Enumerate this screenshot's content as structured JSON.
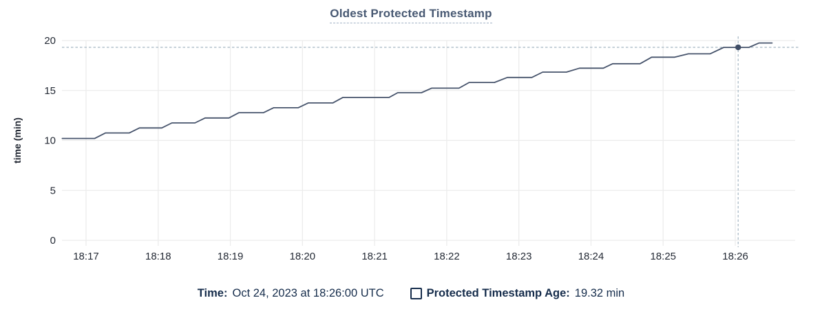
{
  "chart": {
    "title": "Oldest Protected Timestamp"
  },
  "legend": {
    "time_label": "Time:",
    "time_value": "Oct 24, 2023 at 18:26:00 UTC",
    "series_label": "Protected Timestamp Age:",
    "series_value": "19.32 min"
  },
  "colors": {
    "text": "#242a35",
    "navy": "#152c4b",
    "title": "#475872",
    "grid": "#ececec",
    "line": "#46536b",
    "dot": "#3f4d66",
    "crosshair": "#a3b5c2"
  },
  "chart_data": {
    "type": "line",
    "title": "Oldest Protected Timestamp",
    "xlabel": "",
    "ylabel": "time (min)",
    "ylim": [
      0,
      20
    ],
    "yticks": [
      0,
      5,
      10,
      15,
      20
    ],
    "grid": true,
    "legend_position": "bottom",
    "x_domain_minutes_after_1800": [
      16.666,
      26.83
    ],
    "xticks": [
      {
        "t": 17,
        "label": "18:17"
      },
      {
        "t": 18,
        "label": "18:18"
      },
      {
        "t": 19,
        "label": "18:19"
      },
      {
        "t": 20,
        "label": "18:20"
      },
      {
        "t": 21,
        "label": "18:21"
      },
      {
        "t": 22,
        "label": "18:22"
      },
      {
        "t": 23,
        "label": "18:23"
      },
      {
        "t": 24,
        "label": "18:24"
      },
      {
        "t": 25,
        "label": "18:25"
      },
      {
        "t": 26,
        "label": "18:26"
      }
    ],
    "series": [
      {
        "name": "Protected Timestamp Age",
        "unit": "min",
        "points": [
          [
            16.67,
            10.2
          ],
          [
            17.12,
            10.2
          ],
          [
            17.27,
            10.75
          ],
          [
            17.6,
            10.75
          ],
          [
            17.74,
            11.25
          ],
          [
            18.05,
            11.25
          ],
          [
            18.19,
            11.75
          ],
          [
            18.51,
            11.75
          ],
          [
            18.65,
            12.25
          ],
          [
            18.98,
            12.25
          ],
          [
            19.12,
            12.78
          ],
          [
            19.46,
            12.78
          ],
          [
            19.6,
            13.27
          ],
          [
            19.94,
            13.27
          ],
          [
            20.08,
            13.75
          ],
          [
            20.42,
            13.75
          ],
          [
            20.56,
            14.3
          ],
          [
            21.2,
            14.3
          ],
          [
            21.32,
            14.78
          ],
          [
            21.65,
            14.78
          ],
          [
            21.79,
            15.23
          ],
          [
            22.17,
            15.23
          ],
          [
            22.31,
            15.8
          ],
          [
            22.66,
            15.8
          ],
          [
            22.84,
            16.3
          ],
          [
            23.18,
            16.3
          ],
          [
            23.33,
            16.84
          ],
          [
            23.66,
            16.84
          ],
          [
            23.84,
            17.23
          ],
          [
            24.17,
            17.23
          ],
          [
            24.3,
            17.68
          ],
          [
            24.68,
            17.68
          ],
          [
            24.84,
            18.33
          ],
          [
            25.16,
            18.33
          ],
          [
            25.35,
            18.67
          ],
          [
            25.65,
            18.67
          ],
          [
            25.84,
            19.31
          ],
          [
            26.19,
            19.31
          ],
          [
            26.33,
            19.75
          ],
          [
            26.51,
            19.75
          ]
        ]
      }
    ],
    "hover_point": {
      "t": 26.04,
      "value": 19.32,
      "time_label": "Oct 24, 2023 at 18:26:00 UTC",
      "value_label": "19.32 min"
    }
  }
}
